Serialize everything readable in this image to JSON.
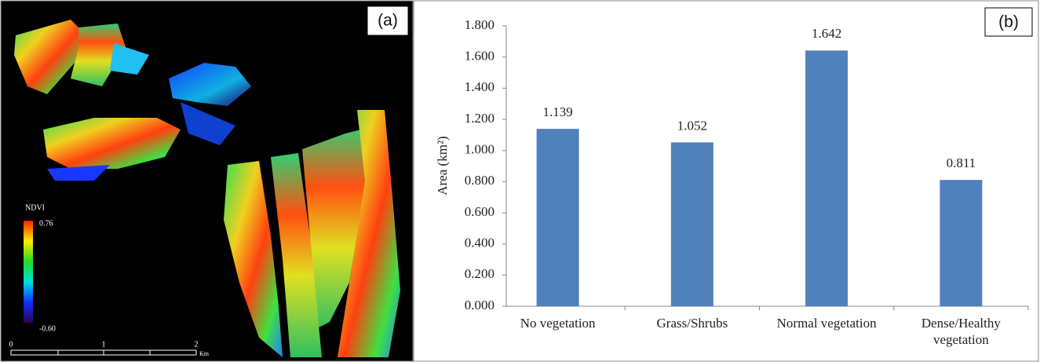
{
  "map_panel": {
    "label": "(a)",
    "legend_title": "NDVI",
    "legend_max": "0.76",
    "legend_min": "-0.60",
    "scale_ticks": [
      "0",
      "1",
      "2"
    ],
    "scale_unit": "Km"
  },
  "chart_data": {
    "type": "bar",
    "panel_label": "(b)",
    "y_label": "Area (km²)",
    "categories": [
      "No vegetation",
      "Grass/Shrubs",
      "Normal vegetation",
      "Dense/Healthy vegetation"
    ],
    "values": [
      1.139,
      1.052,
      1.642,
      0.811
    ],
    "color": "#4f81bd",
    "ylim": [
      0,
      1.8
    ],
    "yticks": [
      {
        "value": 0,
        "label": "0.000"
      },
      {
        "value": 0.2,
        "label": "0.200"
      },
      {
        "value": 0.4,
        "label": "0.400"
      },
      {
        "value": 0.6,
        "label": "0.600"
      },
      {
        "value": 0.8,
        "label": "0.800"
      },
      {
        "value": 1.0,
        "label": "1.000"
      },
      {
        "value": 1.2,
        "label": "1.200"
      },
      {
        "value": 1.4,
        "label": "1.400"
      },
      {
        "value": 1.6,
        "label": "1.600"
      },
      {
        "value": 1.8,
        "label": "1.800"
      }
    ],
    "grid": false
  }
}
